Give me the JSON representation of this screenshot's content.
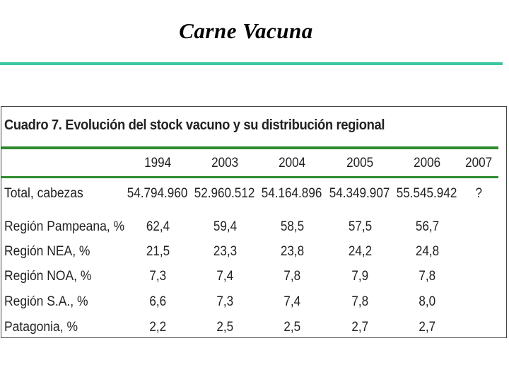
{
  "slide": {
    "title": "Carne Vacuna"
  },
  "table": {
    "caption": "Cuadro 7. Evolución del stock vacuno y su distribución regional",
    "columns": [
      "1994",
      "2003",
      "2004",
      "2005",
      "2006",
      "2007"
    ],
    "rows": [
      {
        "label": "Total, cabezas",
        "values": [
          "54.794.960",
          "52.960.512",
          "54.164.896",
          "54.349.907",
          "55.545.942",
          "?"
        ]
      },
      {
        "label": "Región Pampeana, %",
        "values": [
          "62,4",
          "59,4",
          "58,5",
          "57,5",
          "56,7",
          ""
        ]
      },
      {
        "label": "Región NEA, %",
        "values": [
          "21,5",
          "23,3",
          "23,8",
          "24,2",
          "24,8",
          ""
        ]
      },
      {
        "label": "Región NOA, %",
        "values": [
          "7,3",
          "7,4",
          "7,8",
          "7,9",
          "7,8",
          ""
        ]
      },
      {
        "label": "Región S.A., %",
        "values": [
          "6,6",
          "7,3",
          "7,4",
          "7,8",
          "8,0",
          ""
        ]
      },
      {
        "label": "Patagonia, %",
        "values": [
          "2,2",
          "2,5",
          "2,5",
          "2,7",
          "2,7",
          ""
        ]
      }
    ]
  },
  "colors": {
    "title_rule": "#3cc6a2",
    "table_rules": "#2e8b2e"
  }
}
